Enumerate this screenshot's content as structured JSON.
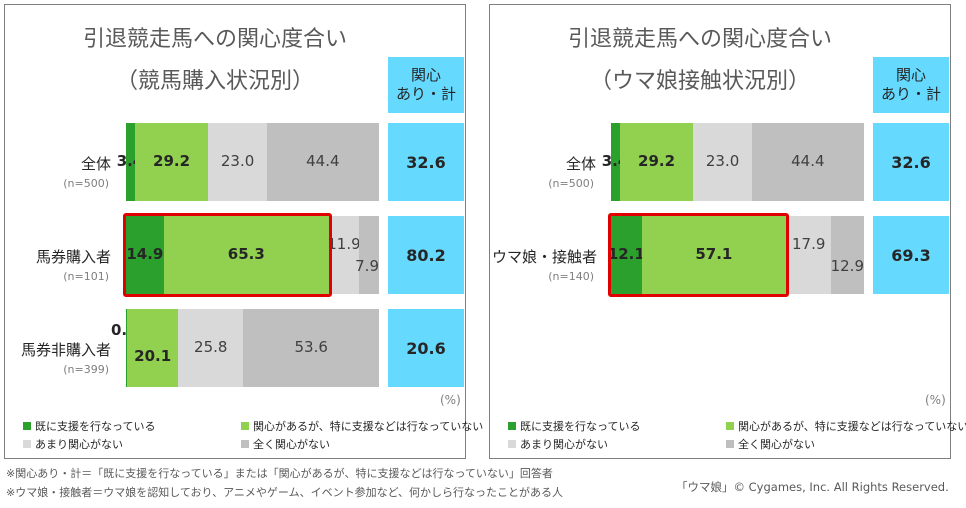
{
  "colors": {
    "already": "#2ca02c",
    "interested": "#92d050",
    "not_much": "#d9d9d9",
    "none": "#bfbfbf",
    "highlight": "#e00000",
    "total_bg": "#66d9ff"
  },
  "chart_data": [
    {
      "type": "bar",
      "title": "引退競走馬への関心度合い",
      "subtitle": "（競馬購入状況別）",
      "total_header": [
        "関心",
        "あり・計"
      ],
      "unit": "(%)",
      "categories": [
        "全体",
        "馬券購入者",
        "馬券非購入者"
      ],
      "sample_sizes": [
        "(n=500)",
        "(n=101)",
        "(n=399)"
      ],
      "series": [
        {
          "name": "既に支援を行なっている",
          "values": [
            3.4,
            14.9,
            0.5
          ]
        },
        {
          "name": "関心があるが、特に支援などは行なっていない",
          "values": [
            29.2,
            65.3,
            20.1
          ]
        },
        {
          "name": "あまり関心がない",
          "values": [
            23.0,
            11.9,
            25.8
          ]
        },
        {
          "name": "全く関心がない",
          "values": [
            44.4,
            7.9,
            53.6
          ]
        }
      ],
      "value_labels": [
        [
          "3.4",
          "29.2",
          "23.0",
          "44.4"
        ],
        [
          "14.9",
          "65.3",
          "11.9",
          "7.9"
        ],
        [
          "0.5",
          "20.1",
          "25.8",
          "53.6"
        ]
      ],
      "totals": [
        "32.6",
        "80.2",
        "20.6"
      ],
      "highlighted_row": 1,
      "xlim": [
        0,
        100
      ],
      "legend_position": "bottom"
    },
    {
      "type": "bar",
      "title": "引退競走馬への関心度合い",
      "subtitle": "（ウマ娘接触状況別）",
      "total_header": [
        "関心",
        "あり・計"
      ],
      "unit": "(%)",
      "categories": [
        "全体",
        "ウマ娘・接触者"
      ],
      "sample_sizes": [
        "(n=500)",
        "(n=140)"
      ],
      "series": [
        {
          "name": "既に支援を行なっている",
          "values": [
            3.4,
            12.1
          ]
        },
        {
          "name": "関心があるが、特に支援などは行なっていない",
          "values": [
            29.2,
            57.1
          ]
        },
        {
          "name": "あまり関心がない",
          "values": [
            23.0,
            17.9
          ]
        },
        {
          "name": "全く関心がない",
          "values": [
            44.4,
            12.9
          ]
        }
      ],
      "value_labels": [
        [
          "3.4",
          "29.2",
          "23.0",
          "44.4"
        ],
        [
          "12.1",
          "57.1",
          "17.9",
          "12.9"
        ]
      ],
      "totals": [
        "32.6",
        "69.3"
      ],
      "highlighted_row": 1,
      "xlim": [
        0,
        100
      ],
      "legend_position": "bottom"
    }
  ],
  "notes": [
    "※関心あり・計＝「既に支援を行なっている」または「関心があるが、特に支援などは行なっていない」回答者",
    "※ウマ娘・接触者＝ウマ娘を認知しており、アニメやゲーム、イベント参加など、何かしら行なったことがある人"
  ],
  "copyright": "「ウマ娘」© Cygames, Inc. All Rights Reserved."
}
